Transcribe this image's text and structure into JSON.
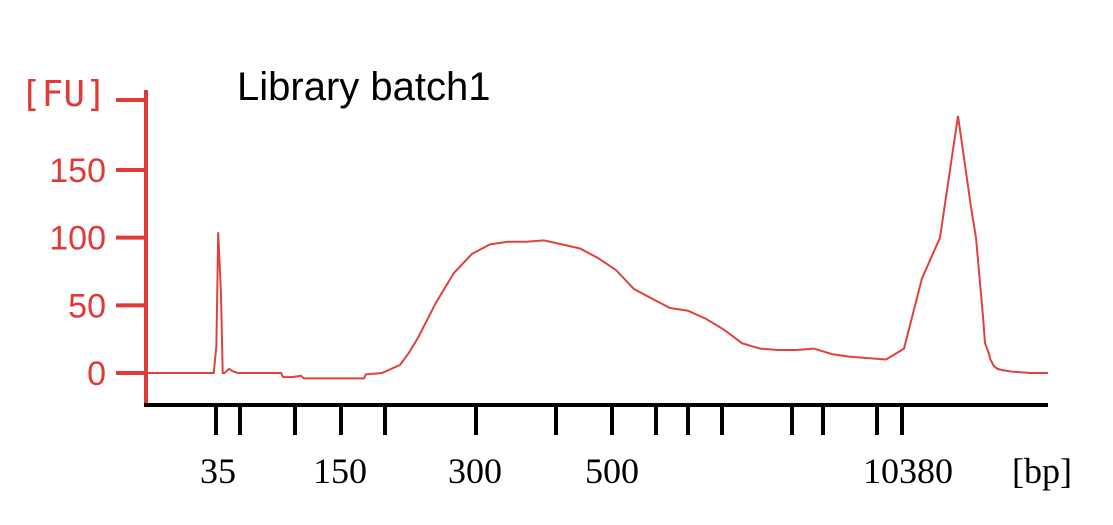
{
  "chart_data": {
    "type": "line",
    "title": "Library batch1",
    "ylabel": "[FU]",
    "xlabel": "[bp]",
    "ylim": [
      0,
      200
    ],
    "yticks": [
      0,
      50,
      100,
      150
    ],
    "xtick_labels": [
      "35",
      "150",
      "300",
      "500",
      "10380"
    ],
    "grid": false,
    "colors": {
      "trace": "#e0413f",
      "y_axis": "#e03a36",
      "x_axis": "#000000"
    },
    "series": [
      {
        "values_note_x": "x = migration position index (0 = left end, 100 = right end of trace)",
        "x": [
          0,
          7.3,
          7.6,
          7.8,
          8.0,
          8.1,
          8.3,
          8.5,
          9.0,
          9.5,
          10.0,
          11.0,
          14.8,
          15.0,
          16.0,
          17.0,
          17.3,
          18.0,
          20.0,
          24.0,
          24.2,
          26.0,
          28.0,
          29.0,
          30.0,
          32.0,
          34.0,
          36.0,
          38.0,
          40.0,
          42.0,
          44.0,
          46.0,
          48.0,
          50.0,
          52.0,
          54.0,
          56.0,
          58.0,
          60.0,
          62.0,
          64.0,
          66.0,
          68.0,
          70.0,
          72.0,
          74.0,
          76.0,
          78.0,
          80.0,
          82.0,
          84.0,
          86.0,
          88.0,
          90.0,
          91.5,
          92.0,
          92.8,
          93.0,
          93.4,
          93.6,
          94.0,
          94.4,
          95.0,
          96.0,
          98.0,
          100.0
        ],
        "y": [
          0,
          0,
          20,
          104,
          75,
          60,
          0,
          0,
          3,
          1,
          0,
          0,
          0,
          -3,
          -3,
          -2,
          -4,
          -4,
          -4,
          -4,
          -1,
          0,
          6,
          15,
          26,
          52,
          74,
          88,
          95,
          97,
          97,
          98,
          95,
          92,
          85,
          76,
          62,
          55,
          48,
          46,
          40,
          32,
          22,
          18,
          17,
          17,
          18,
          14,
          12,
          11,
          10,
          18,
          70,
          100,
          190,
          120,
          100,
          40,
          22,
          15,
          10,
          5,
          3,
          2,
          1,
          0,
          0
        ]
      }
    ]
  }
}
